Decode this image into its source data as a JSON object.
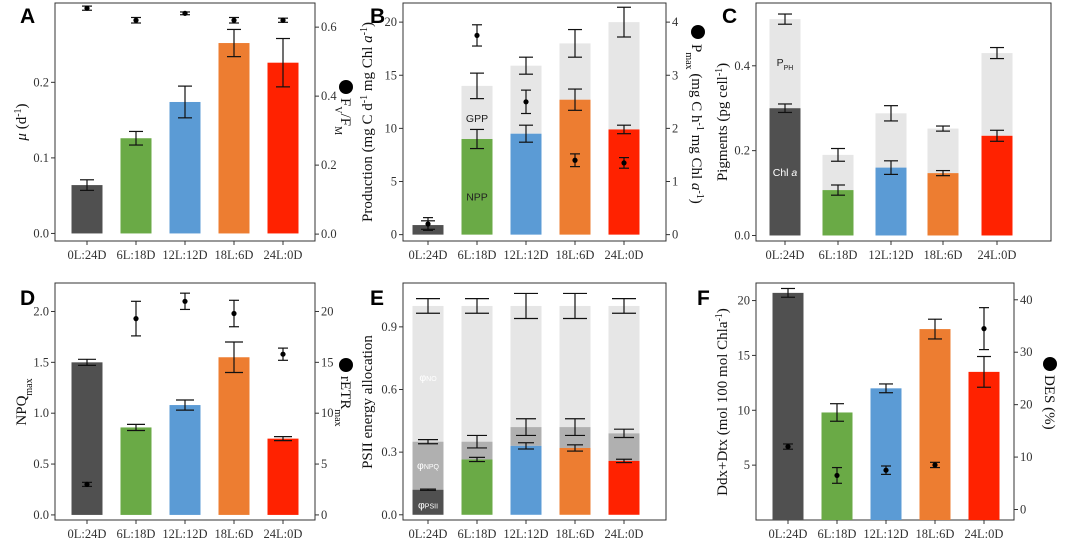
{
  "figure": {
    "conditions": [
      "0L:24D",
      "6L:18D",
      "12L:12D",
      "18L:6D",
      "24L:0D"
    ],
    "colors": [
      "#505050",
      "#6aaa46",
      "#5b9bd5",
      "#ed7d31",
      "#ff2200"
    ],
    "light_grey": "#e6e6e6",
    "mid_grey": "#b0b0b0"
  },
  "chart_data": [
    {
      "panel": "A",
      "type": "bar",
      "categories": [
        "0L:24D",
        "6L:18D",
        "12L:12D",
        "18L:6D",
        "24L:0D"
      ],
      "series": [
        {
          "name": "μ (d⁻¹)",
          "values": [
            0.064,
            0.126,
            0.174,
            0.252,
            0.226
          ],
          "errors": [
            0.007,
            0.009,
            0.021,
            0.018,
            0.032
          ]
        }
      ],
      "secondary_series": [
        {
          "name": "Fv/Fm",
          "values": [
            0.655,
            0.62,
            0.64,
            0.62,
            0.62
          ],
          "errors": [
            0.006,
            0.008,
            0.004,
            0.008,
            0.006
          ]
        }
      ],
      "ylabel": "μ (d⁻¹)",
      "ylabel_main": "μ",
      "ylabel_unit": " (d",
      "y2label": "Fv/Fm",
      "y2label_sub_v": "V",
      "y2label_sub_m": "M",
      "ylim": [
        -0.01,
        0.305
      ],
      "y2lim": [
        -0.02,
        0.67
      ],
      "yticks": [
        "0.0",
        "0.1",
        "0.2"
      ],
      "y2ticks": [
        "0.0",
        "0.2",
        "0.4",
        "0.6"
      ]
    },
    {
      "panel": "B",
      "type": "bar",
      "categories": [
        "0L:24D",
        "6L:18D",
        "12L:12D",
        "18L:6D",
        "24L:0D"
      ],
      "series": [
        {
          "name": "NPP",
          "values": [
            0.9,
            9.0,
            9.5,
            12.7,
            9.9
          ],
          "errors": [
            0.4,
            0.9,
            0.8,
            1.0,
            0.4
          ]
        },
        {
          "name": "GPP",
          "values": [
            0.9,
            14.0,
            15.9,
            18.0,
            20.0
          ],
          "errors": [
            0.2,
            1.2,
            0.8,
            1.3,
            1.4
          ]
        }
      ],
      "secondary_series": [
        {
          "name": "Pmax",
          "values": [
            0.2,
            3.75,
            2.5,
            1.4,
            1.35
          ],
          "errors": [
            0.12,
            0.2,
            0.22,
            0.12,
            0.1
          ]
        }
      ],
      "ylabel": "Production (mg C d⁻¹ mg Chl a⁻¹)",
      "ylabel_prefix": "Production (mg C d",
      "ylabel_mid": " mg Chl ",
      "y2label": "Pmax (mg C h⁻¹ mg Chl a⁻¹)",
      "y2label_main": "P",
      "y2label_sub": "max",
      "y2label_unit": " (mg C h",
      "y2label_chl": " mg Chl ",
      "ylim": [
        -0.6,
        21.8
      ],
      "y2lim": [
        -0.12,
        4.36
      ],
      "yticks": [
        "0",
        "5",
        "10",
        "15",
        "20"
      ],
      "y2ticks": [
        "0",
        "1",
        "2",
        "3",
        "4"
      ],
      "inbar_labels": {
        "npp": "NPP",
        "gpp": "GPP"
      }
    },
    {
      "panel": "C",
      "type": "bar",
      "categories": [
        "0L:24D",
        "6L:18D",
        "12L:12D",
        "18L:6D",
        "24L:0D"
      ],
      "series": [
        {
          "name": "Chl a",
          "values": [
            0.3,
            0.107,
            0.16,
            0.147,
            0.235
          ],
          "errors": [
            0.01,
            0.012,
            0.016,
            0.006,
            0.013
          ]
        },
        {
          "name": "PPH",
          "values": [
            0.51,
            0.19,
            0.288,
            0.252,
            0.43
          ],
          "errors": [
            0.012,
            0.015,
            0.018,
            0.006,
            0.013
          ]
        }
      ],
      "ylabel": "Pigments (pg cell⁻¹)",
      "ylabel_prefix": "Pigments (pg cell",
      "ylim": [
        -0.013,
        0.548
      ],
      "yticks": [
        "0.0",
        "0.2",
        "0.4"
      ],
      "inbar_labels": {
        "chl_main": "Chl ",
        "pph_main": "P",
        "pph_sub": "PH"
      }
    },
    {
      "panel": "D",
      "type": "bar",
      "categories": [
        "0L:24D",
        "6L:18D",
        "12L:12D",
        "18L:6D",
        "24L:0D"
      ],
      "series": [
        {
          "name": "NPQmax",
          "values": [
            1.5,
            0.86,
            1.08,
            1.55,
            0.75
          ],
          "errors": [
            0.03,
            0.03,
            0.05,
            0.15,
            0.02
          ]
        }
      ],
      "secondary_series": [
        {
          "name": "rETRmax",
          "values": [
            3.0,
            19.3,
            21.0,
            19.8,
            15.8
          ],
          "errors": [
            0.2,
            1.7,
            0.8,
            1.3,
            0.6
          ]
        }
      ],
      "ylabel": "NPQmax",
      "ylabel_main": "NPQ",
      "ylabel_sub": "max",
      "y2label": "rETRmax",
      "y2label_main": "rETR",
      "y2label_sub": "max",
      "ylim": [
        -0.05,
        2.28
      ],
      "y2lim": [
        -0.5,
        22.8
      ],
      "yticks": [
        "0.0",
        "0.5",
        "1.0",
        "1.5",
        "2.0"
      ],
      "y2ticks": [
        "0",
        "5",
        "10",
        "15",
        "20"
      ]
    },
    {
      "panel": "E",
      "type": "bar",
      "categories": [
        "0L:24D",
        "6L:18D",
        "12L:12D",
        "18L:6D",
        "24L:0D"
      ],
      "series": [
        {
          "name": "ΦPSII",
          "values": [
            0.12,
            0.265,
            0.33,
            0.32,
            0.258
          ],
          "errors": [
            0.003,
            0.01,
            0.015,
            0.015,
            0.008
          ]
        },
        {
          "name": "ΦNPQ",
          "values": [
            0.35,
            0.35,
            0.42,
            0.42,
            0.39
          ],
          "errors": [
            0.01,
            0.03,
            0.04,
            0.04,
            0.02
          ]
        },
        {
          "name": "ΦNO",
          "values": [
            1.0,
            1.0,
            1.0,
            1.0,
            1.0
          ],
          "errors": [
            0.035,
            0.035,
            0.06,
            0.06,
            0.035
          ]
        }
      ],
      "ylabel": "PSII energy allocation",
      "ylim": [
        -0.025,
        1.11
      ],
      "yticks": [
        "0.0",
        "0.3",
        "0.6",
        "0.9"
      ],
      "inbar_labels": {
        "phi": "φ",
        "psii": "PSII",
        "npq": "NPQ",
        "no": "NO"
      }
    },
    {
      "panel": "F",
      "type": "bar",
      "categories": [
        "0L:24D",
        "6L:18D",
        "12L:12D",
        "18L:6D",
        "24L:0D"
      ],
      "series": [
        {
          "name": "Ddx+Dtx",
          "values": [
            20.7,
            9.8,
            12.0,
            17.4,
            13.5
          ],
          "errors": [
            0.4,
            0.8,
            0.4,
            0.9,
            1.4
          ]
        }
      ],
      "secondary_series": [
        {
          "name": "DES (%)",
          "values": [
            12.0,
            6.5,
            7.5,
            8.5,
            34.5
          ],
          "errors": [
            0.5,
            1.5,
            0.8,
            0.5,
            4.0
          ]
        }
      ],
      "ylabel": "Ddx+Dtx (mol 100 mol Chla⁻¹)",
      "ylabel_prefix": "Ddx+Dtx (mol 100 mol Chla",
      "y2label": "DES (%)",
      "ylim": [
        0,
        21.6
      ],
      "y2lim": [
        -2,
        43.2
      ],
      "yticks": [
        "5",
        "10",
        "15",
        "20"
      ],
      "y2ticks": [
        "0",
        "10",
        "20",
        "30",
        "40"
      ]
    }
  ]
}
